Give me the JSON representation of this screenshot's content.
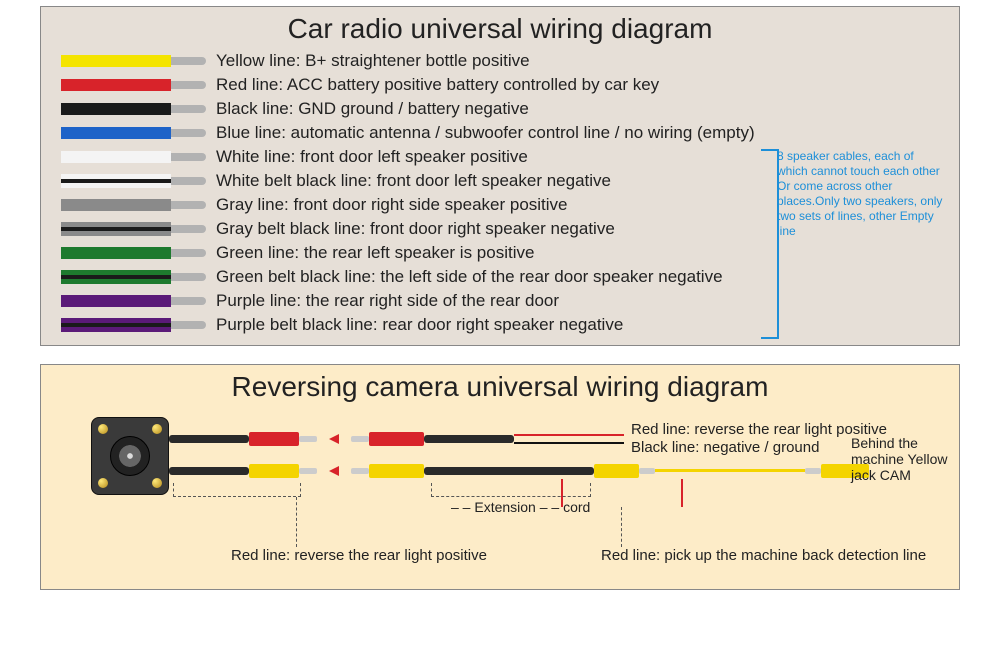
{
  "radio": {
    "title": "Car radio universal wiring diagram",
    "bg": "#e6dfd7",
    "wire_tip_color": "#b2b2b2",
    "wires": [
      {
        "colors": [
          "#f4e400"
        ],
        "label": "Yellow line: B+ straightener bottle positive"
      },
      {
        "colors": [
          "#d8232a"
        ],
        "label": "Red line: ACC battery positive battery controlled by car key"
      },
      {
        "colors": [
          "#1a1a1a"
        ],
        "label": "Black line: GND ground / battery negative"
      },
      {
        "colors": [
          "#1e63c8"
        ],
        "label": "Blue line: automatic antenna / subwoofer control line / no wiring (empty)"
      },
      {
        "colors": [
          "#f4f4f4"
        ],
        "label": "White line: front door left speaker positive"
      },
      {
        "colors": [
          "#f4f4f4",
          "#1a1a1a",
          "#f4f4f4"
        ],
        "label": "White belt black line: front door left speaker negative"
      },
      {
        "colors": [
          "#8a8a8a"
        ],
        "label": "Gray line: front door right side speaker positive"
      },
      {
        "colors": [
          "#8a8a8a",
          "#1a1a1a",
          "#8a8a8a"
        ],
        "label": "Gray belt black line: front door right speaker negative"
      },
      {
        "colors": [
          "#1e7a2e"
        ],
        "label": "Green line: the rear left speaker is positive"
      },
      {
        "colors": [
          "#1e7a2e",
          "#1a1a1a",
          "#1e7a2e"
        ],
        "label": "Green belt black line: the left side of the rear door speaker negative"
      },
      {
        "colors": [
          "#5b1a78"
        ],
        "label": "Purple line: the rear right side of the rear door"
      },
      {
        "colors": [
          "#5b1a78",
          "#1a1a1a",
          "#5b1a78"
        ],
        "label": "Purple belt black line: rear door right speaker negative"
      }
    ],
    "note": "8 speaker cables, each of which cannot  touch each other Or come across other places.Only two speakers, only two sets of lines, other  Empty line",
    "note_color": "#1d8fd8"
  },
  "camera": {
    "title": "Reversing camera universal wiring diagram",
    "bg": "#fdecc8",
    "labels": {
      "red_line_right": "Red line: reverse the rear light positive",
      "black_line_right": "Black line: negative / ground",
      "behind": "Behind the machine Yellow jack CAM",
      "extension": "– – Extension – – cord",
      "red_bottom_left": "Red line: reverse the rear light positive",
      "red_bottom_right": "Red line: pick up the machine back detection line"
    },
    "colors": {
      "red": "#d8232a",
      "yellow": "#f4d400",
      "black": "#2a2a2a",
      "metal": "#cccccc",
      "camera_body": "#3a3a3a"
    }
  }
}
